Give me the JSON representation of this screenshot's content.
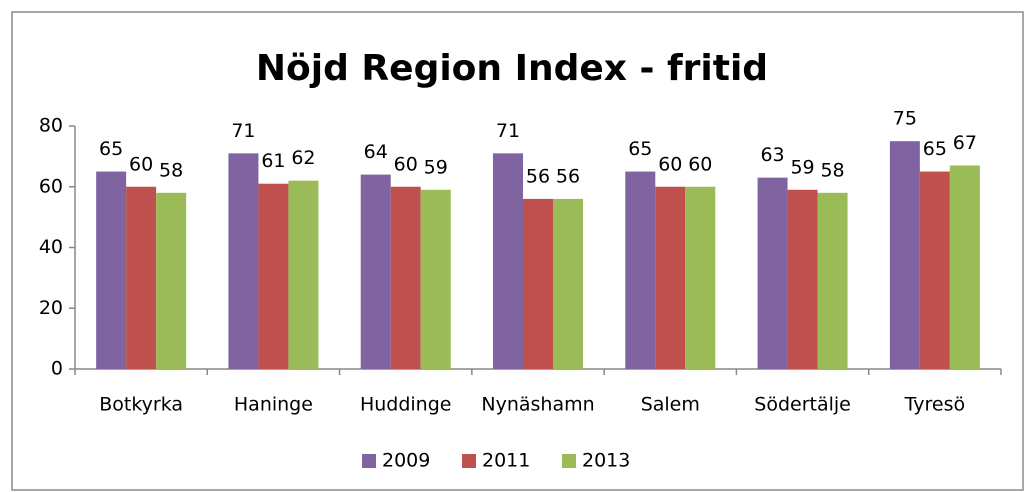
{
  "chart_data": {
    "type": "bar",
    "title": "Nöjd Region Index - fritid",
    "categories": [
      "Botkyrka",
      "Haninge",
      "Huddinge",
      "Nynäshamn",
      "Salem",
      "Södertälje",
      "Tyresö"
    ],
    "series": [
      {
        "name": "2009",
        "color": "#8064a2",
        "values": [
          65,
          71,
          64,
          71,
          65,
          63,
          75
        ]
      },
      {
        "name": "2011",
        "color": "#c0504d",
        "values": [
          60,
          61,
          60,
          56,
          60,
          59,
          65
        ]
      },
      {
        "name": "2013",
        "color": "#9bbb59",
        "values": [
          58,
          62,
          59,
          56,
          60,
          58,
          67
        ]
      }
    ],
    "ylim": [
      0,
      80
    ],
    "yticks": [
      0,
      20,
      40,
      60,
      80
    ],
    "grid": false,
    "legend": "bottom"
  }
}
